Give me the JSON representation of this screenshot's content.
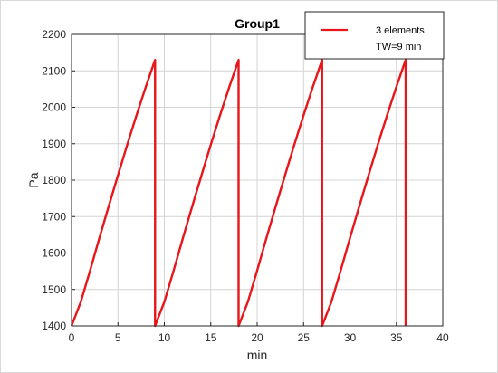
{
  "chart_data": {
    "type": "line",
    "title": "Group1",
    "xlabel": "min",
    "ylabel": "Pa",
    "xlim": [
      0,
      40
    ],
    "ylim": [
      1400,
      2200
    ],
    "xticks": [
      0,
      5,
      10,
      15,
      20,
      25,
      30,
      35,
      40
    ],
    "yticks": [
      1400,
      1500,
      1600,
      1700,
      1800,
      1900,
      2000,
      2100,
      2200
    ],
    "grid": true,
    "legend_placement": "top-right",
    "legend_lines": [
      "3 elements",
      "TW=9 min"
    ],
    "series": [
      {
        "name": "3 elements",
        "color": "#e8161b",
        "x": [
          0,
          1,
          2,
          3,
          4,
          5,
          6,
          7,
          8,
          9,
          9,
          10,
          11,
          12,
          13,
          14,
          15,
          16,
          17,
          18,
          18,
          19,
          20,
          21,
          22,
          23,
          24,
          25,
          26,
          27,
          27,
          28,
          29,
          30,
          31,
          32,
          33,
          34,
          35,
          36,
          36
        ],
        "y": [
          1400,
          1466,
          1552,
          1641,
          1728,
          1813,
          1897,
          1978,
          2056,
          2130,
          1400,
          1466,
          1552,
          1641,
          1728,
          1813,
          1897,
          1978,
          2056,
          2130,
          1400,
          1466,
          1552,
          1641,
          1728,
          1813,
          1897,
          1978,
          2056,
          2130,
          1400,
          1466,
          1552,
          1641,
          1728,
          1813,
          1897,
          1978,
          2056,
          2130,
          1400
        ]
      }
    ]
  }
}
